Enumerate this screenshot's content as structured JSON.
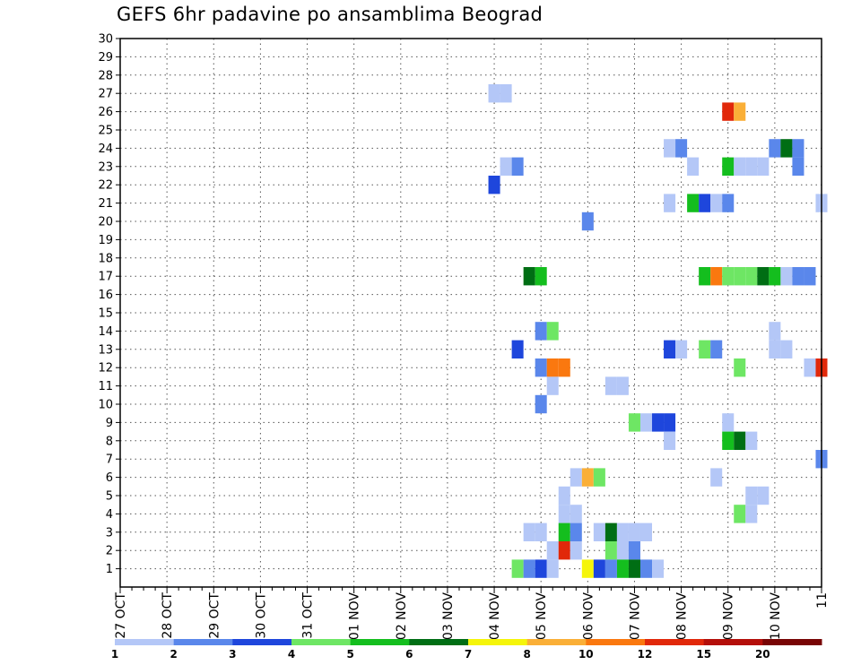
{
  "title": "GEFS 6hr padavine po ansamblima Beograd",
  "chart_data": {
    "type": "heatmap",
    "title": "GEFS 6hr padavine po ansamblima Beograd",
    "xlabel": "",
    "ylabel": "",
    "x_ticks": [
      "27 OCT",
      "28 OCT",
      "29 OCT",
      "30 OCT",
      "31 OCT",
      "01 NOV",
      "02 NOV",
      "03 NOV",
      "04 NOV",
      "05 NOV",
      "06 NOV",
      "07 NOV",
      "08 NOV",
      "09 NOV",
      "10 NOV",
      "11"
    ],
    "x_step_hours": 6,
    "y_ticks": [
      1,
      2,
      3,
      4,
      5,
      6,
      7,
      8,
      9,
      10,
      11,
      12,
      13,
      14,
      15,
      16,
      17,
      18,
      19,
      20,
      21,
      22,
      23,
      24,
      25,
      26,
      27,
      28,
      29,
      30
    ],
    "ylim": [
      0,
      30
    ],
    "grid": true,
    "colorbar": {
      "labels": [
        "1",
        "2",
        "3",
        "4",
        "5",
        "6",
        "7",
        "8",
        "10",
        "12",
        "15",
        "20"
      ],
      "colors": [
        "#b4c7f7",
        "#5a87eb",
        "#1e46dc",
        "#6ee664",
        "#14be1e",
        "#006e14",
        "#f5f50a",
        "#faaf37",
        "#fa780f",
        "#e1280a",
        "#b40f0a",
        "#780505"
      ]
    },
    "cells": [
      {
        "member": 27,
        "step": 32,
        "bin": 0
      },
      {
        "member": 27,
        "step": 33,
        "bin": 0
      },
      {
        "member": 26,
        "step": 52,
        "bin": 9
      },
      {
        "member": 26,
        "step": 53,
        "bin": 7
      },
      {
        "member": 24,
        "step": 47,
        "bin": 0
      },
      {
        "member": 24,
        "step": 48,
        "bin": 1
      },
      {
        "member": 24,
        "step": 56,
        "bin": 1
      },
      {
        "member": 24,
        "step": 57,
        "bin": 5
      },
      {
        "member": 24,
        "step": 58,
        "bin": 1
      },
      {
        "member": 23,
        "step": 33,
        "bin": 0
      },
      {
        "member": 23,
        "step": 34,
        "bin": 1
      },
      {
        "member": 23,
        "step": 49,
        "bin": 0
      },
      {
        "member": 23,
        "step": 52,
        "bin": 4
      },
      {
        "member": 23,
        "step": 53,
        "bin": 0
      },
      {
        "member": 23,
        "step": 54,
        "bin": 0
      },
      {
        "member": 23,
        "step": 55,
        "bin": 0
      },
      {
        "member": 23,
        "step": 58,
        "bin": 1
      },
      {
        "member": 22,
        "step": 32,
        "bin": 2
      },
      {
        "member": 21,
        "step": 47,
        "bin": 0
      },
      {
        "member": 21,
        "step": 49,
        "bin": 4
      },
      {
        "member": 21,
        "step": 50,
        "bin": 2
      },
      {
        "member": 21,
        "step": 51,
        "bin": 0
      },
      {
        "member": 21,
        "step": 52,
        "bin": 1
      },
      {
        "member": 21,
        "step": 60,
        "bin": 0
      },
      {
        "member": 20,
        "step": 40,
        "bin": 1
      },
      {
        "member": 17,
        "step": 35,
        "bin": 5
      },
      {
        "member": 17,
        "step": 36,
        "bin": 4
      },
      {
        "member": 17,
        "step": 50,
        "bin": 4
      },
      {
        "member": 17,
        "step": 51,
        "bin": 8
      },
      {
        "member": 17,
        "step": 52,
        "bin": 3
      },
      {
        "member": 17,
        "step": 53,
        "bin": 3
      },
      {
        "member": 17,
        "step": 54,
        "bin": 3
      },
      {
        "member": 17,
        "step": 55,
        "bin": 5
      },
      {
        "member": 17,
        "step": 56,
        "bin": 4
      },
      {
        "member": 17,
        "step": 57,
        "bin": 0
      },
      {
        "member": 17,
        "step": 58,
        "bin": 1
      },
      {
        "member": 17,
        "step": 59,
        "bin": 1
      },
      {
        "member": 14,
        "step": 36,
        "bin": 1
      },
      {
        "member": 14,
        "step": 37,
        "bin": 3
      },
      {
        "member": 14,
        "step": 56,
        "bin": 0
      },
      {
        "member": 13,
        "step": 34,
        "bin": 2
      },
      {
        "member": 13,
        "step": 47,
        "bin": 2
      },
      {
        "member": 13,
        "step": 48,
        "bin": 0
      },
      {
        "member": 13,
        "step": 50,
        "bin": 3
      },
      {
        "member": 13,
        "step": 51,
        "bin": 1
      },
      {
        "member": 13,
        "step": 56,
        "bin": 0
      },
      {
        "member": 13,
        "step": 57,
        "bin": 0
      },
      {
        "member": 12,
        "step": 36,
        "bin": 1
      },
      {
        "member": 12,
        "step": 37,
        "bin": 8
      },
      {
        "member": 12,
        "step": 38,
        "bin": 8
      },
      {
        "member": 12,
        "step": 53,
        "bin": 3
      },
      {
        "member": 12,
        "step": 59,
        "bin": 0
      },
      {
        "member": 12,
        "step": 60,
        "bin": 9
      },
      {
        "member": 11,
        "step": 37,
        "bin": 0
      },
      {
        "member": 11,
        "step": 42,
        "bin": 0
      },
      {
        "member": 11,
        "step": 43,
        "bin": 0
      },
      {
        "member": 10,
        "step": 36,
        "bin": 1
      },
      {
        "member": 9,
        "step": 44,
        "bin": 3
      },
      {
        "member": 9,
        "step": 45,
        "bin": 0
      },
      {
        "member": 9,
        "step": 46,
        "bin": 2
      },
      {
        "member": 9,
        "step": 47,
        "bin": 2
      },
      {
        "member": 9,
        "step": 52,
        "bin": 0
      },
      {
        "member": 8,
        "step": 47,
        "bin": 0
      },
      {
        "member": 8,
        "step": 52,
        "bin": 4
      },
      {
        "member": 8,
        "step": 53,
        "bin": 5
      },
      {
        "member": 8,
        "step": 54,
        "bin": 0
      },
      {
        "member": 7,
        "step": 60,
        "bin": 1
      },
      {
        "member": 6,
        "step": 39,
        "bin": 0
      },
      {
        "member": 6,
        "step": 40,
        "bin": 7
      },
      {
        "member": 6,
        "step": 41,
        "bin": 3
      },
      {
        "member": 6,
        "step": 51,
        "bin": 0
      },
      {
        "member": 5,
        "step": 38,
        "bin": 0
      },
      {
        "member": 5,
        "step": 54,
        "bin": 0
      },
      {
        "member": 5,
        "step": 55,
        "bin": 0
      },
      {
        "member": 4,
        "step": 38,
        "bin": 0
      },
      {
        "member": 4,
        "step": 39,
        "bin": 0
      },
      {
        "member": 4,
        "step": 53,
        "bin": 3
      },
      {
        "member": 4,
        "step": 54,
        "bin": 0
      },
      {
        "member": 3,
        "step": 35,
        "bin": 0
      },
      {
        "member": 3,
        "step": 36,
        "bin": 0
      },
      {
        "member": 3,
        "step": 38,
        "bin": 4
      },
      {
        "member": 3,
        "step": 39,
        "bin": 1
      },
      {
        "member": 3,
        "step": 41,
        "bin": 0
      },
      {
        "member": 3,
        "step": 42,
        "bin": 5
      },
      {
        "member": 3,
        "step": 43,
        "bin": 0
      },
      {
        "member": 3,
        "step": 44,
        "bin": 0
      },
      {
        "member": 3,
        "step": 45,
        "bin": 0
      },
      {
        "member": 2,
        "step": 37,
        "bin": 0
      },
      {
        "member": 2,
        "step": 38,
        "bin": 9
      },
      {
        "member": 2,
        "step": 39,
        "bin": 0
      },
      {
        "member": 2,
        "step": 42,
        "bin": 3
      },
      {
        "member": 2,
        "step": 43,
        "bin": 0
      },
      {
        "member": 2,
        "step": 44,
        "bin": 1
      },
      {
        "member": 1,
        "step": 34,
        "bin": 3
      },
      {
        "member": 1,
        "step": 35,
        "bin": 1
      },
      {
        "member": 1,
        "step": 36,
        "bin": 2
      },
      {
        "member": 1,
        "step": 37,
        "bin": 0
      },
      {
        "member": 1,
        "step": 40,
        "bin": 6
      },
      {
        "member": 1,
        "step": 41,
        "bin": 2
      },
      {
        "member": 1,
        "step": 42,
        "bin": 1
      },
      {
        "member": 1,
        "step": 43,
        "bin": 4
      },
      {
        "member": 1,
        "step": 44,
        "bin": 5
      },
      {
        "member": 1,
        "step": 45,
        "bin": 1
      },
      {
        "member": 1,
        "step": 46,
        "bin": 0
      }
    ]
  }
}
